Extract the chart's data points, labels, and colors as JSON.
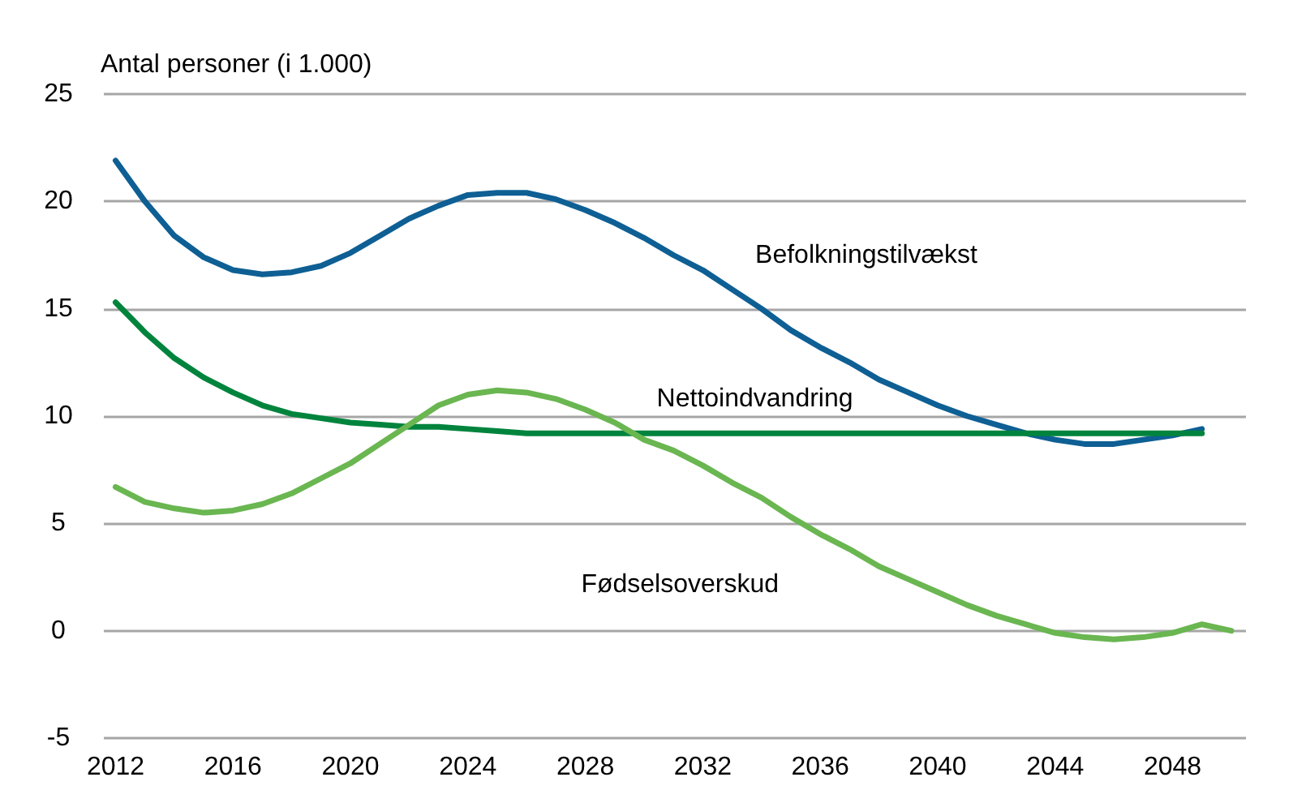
{
  "chart_data": {
    "type": "line",
    "ylabel": "Antal personer (i 1.000)",
    "x": [
      2012,
      2013,
      2014,
      2015,
      2016,
      2017,
      2018,
      2019,
      2020,
      2021,
      2022,
      2023,
      2024,
      2025,
      2026,
      2027,
      2028,
      2029,
      2030,
      2031,
      2032,
      2033,
      2034,
      2035,
      2036,
      2037,
      2038,
      2039,
      2040,
      2041,
      2042,
      2043,
      2044,
      2045,
      2046,
      2047,
      2048,
      2049,
      2050
    ],
    "series": [
      {
        "name": "Befolkningstilvækst",
        "color": "#0e5f94",
        "values": [
          21.9,
          20.0,
          18.4,
          17.4,
          16.8,
          16.6,
          16.7,
          17.0,
          17.6,
          18.4,
          19.2,
          19.8,
          20.3,
          20.4,
          20.4,
          20.1,
          19.6,
          19.0,
          18.3,
          17.5,
          16.8,
          15.9,
          15.0,
          14.0,
          13.2,
          12.5,
          11.7,
          11.1,
          10.5,
          10.0,
          9.6,
          9.2,
          8.9,
          8.7,
          8.7,
          8.9,
          9.1,
          9.4,
          null
        ]
      },
      {
        "name": "Nettoindvandring",
        "color": "#00843d",
        "values": [
          15.3,
          13.9,
          12.7,
          11.8,
          11.1,
          10.5,
          10.1,
          9.9,
          9.7,
          9.6,
          9.5,
          9.5,
          9.4,
          9.3,
          9.2,
          9.2,
          9.2,
          9.2,
          9.2,
          9.2,
          9.2,
          9.2,
          9.2,
          9.2,
          9.2,
          9.2,
          9.2,
          9.2,
          9.2,
          9.2,
          9.2,
          9.2,
          9.2,
          9.2,
          9.2,
          9.2,
          9.2,
          9.2,
          null
        ]
      },
      {
        "name": "Fødselsoverskud",
        "color": "#6ab651",
        "values": [
          6.7,
          6.0,
          5.7,
          5.5,
          5.6,
          5.9,
          6.4,
          7.1,
          7.8,
          8.7,
          9.6,
          10.5,
          11.0,
          11.2,
          11.1,
          10.8,
          10.3,
          9.7,
          8.9,
          8.4,
          7.7,
          6.9,
          6.2,
          5.3,
          4.5,
          3.8,
          3.0,
          2.4,
          1.8,
          1.2,
          0.7,
          0.3,
          -0.1,
          -0.3,
          -0.4,
          -0.3,
          -0.1,
          0.3,
          0
        ]
      }
    ],
    "xlim": [
      2011.6,
      2050.5
    ],
    "xticks": [
      2012,
      2016,
      2020,
      2024,
      2028,
      2032,
      2036,
      2040,
      2044,
      2048
    ],
    "ylim": [
      -5,
      25
    ],
    "yticks": [
      -5,
      0,
      5,
      10,
      15,
      20,
      25
    ],
    "grid": "y",
    "legend": false,
    "marker": "none",
    "line_style": "solid"
  }
}
